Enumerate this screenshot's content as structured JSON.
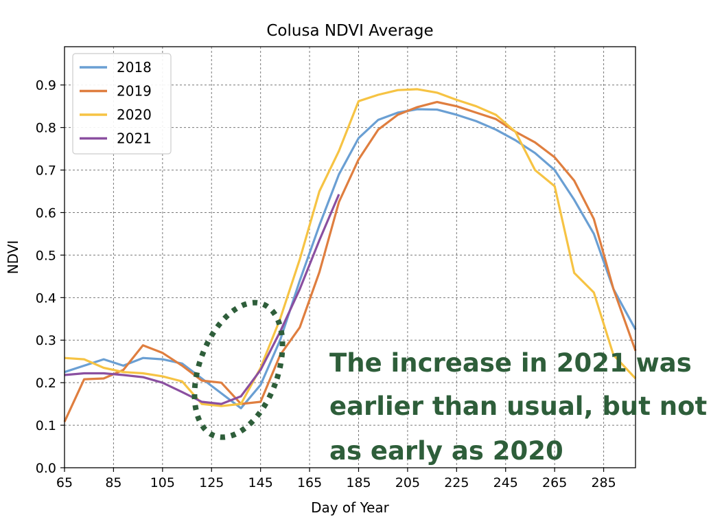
{
  "chart_data": {
    "type": "line",
    "title": "Colusa NDVI Average",
    "xlabel": "Day of Year",
    "ylabel": "NDVI",
    "xlim": [
      65,
      298
    ],
    "ylim": [
      0.0,
      0.99
    ],
    "xticks": [
      65,
      85,
      105,
      125,
      145,
      165,
      185,
      205,
      225,
      245,
      265,
      285
    ],
    "yticks": [
      0.0,
      0.1,
      0.2,
      0.3,
      0.4,
      0.5,
      0.6,
      0.7,
      0.8,
      0.9
    ],
    "grid": true,
    "grid_style": "dashed",
    "legend_position": "top-left",
    "series": [
      {
        "name": "2018",
        "color": "#6a9fd3",
        "x": [
          65,
          73,
          81,
          89,
          97,
          105,
          113,
          121,
          129,
          137,
          145,
          153,
          161,
          169,
          177,
          185,
          193,
          201,
          209,
          217,
          225,
          233,
          241,
          249,
          257,
          265,
          273,
          281,
          289,
          298
        ],
        "y": [
          0.225,
          0.24,
          0.255,
          0.24,
          0.258,
          0.255,
          0.245,
          0.21,
          0.175,
          0.14,
          0.195,
          0.3,
          0.44,
          0.57,
          0.69,
          0.775,
          0.818,
          0.835,
          0.843,
          0.842,
          0.83,
          0.815,
          0.795,
          0.77,
          0.74,
          0.7,
          0.63,
          0.55,
          0.42,
          0.325
        ]
      },
      {
        "name": "2019",
        "color": "#df7e3f",
        "x": [
          65,
          73,
          81,
          89,
          97,
          105,
          113,
          121,
          129,
          137,
          145,
          153,
          161,
          169,
          177,
          185,
          193,
          201,
          209,
          217,
          225,
          233,
          241,
          249,
          257,
          265,
          273,
          281,
          289,
          298
        ],
        "y": [
          0.108,
          0.208,
          0.21,
          0.23,
          0.288,
          0.27,
          0.24,
          0.205,
          0.2,
          0.15,
          0.155,
          0.265,
          0.33,
          0.46,
          0.625,
          0.725,
          0.795,
          0.83,
          0.848,
          0.86,
          0.85,
          0.835,
          0.82,
          0.79,
          0.765,
          0.73,
          0.675,
          0.585,
          0.42,
          0.275
        ]
      },
      {
        "name": "2020",
        "color": "#f6c343",
        "x": [
          65,
          73,
          81,
          89,
          97,
          105,
          113,
          121,
          129,
          137,
          145,
          153,
          161,
          169,
          177,
          185,
          193,
          201,
          209,
          217,
          225,
          233,
          241,
          249,
          257,
          265,
          273,
          281,
          289,
          298
        ],
        "y": [
          0.258,
          0.255,
          0.235,
          0.225,
          0.222,
          0.215,
          0.203,
          0.15,
          0.145,
          0.15,
          0.235,
          0.35,
          0.49,
          0.65,
          0.745,
          0.862,
          0.877,
          0.888,
          0.89,
          0.882,
          0.865,
          0.85,
          0.83,
          0.79,
          0.7,
          0.662,
          0.458,
          0.412,
          0.265,
          0.21
        ]
      },
      {
        "name": "2021",
        "color": "#8a4fa0",
        "x": [
          65,
          73,
          81,
          89,
          97,
          105,
          113,
          121,
          129,
          137,
          145,
          153,
          161,
          169,
          177
        ],
        "y": [
          0.218,
          0.222,
          0.222,
          0.218,
          0.213,
          0.2,
          0.178,
          0.155,
          0.15,
          0.168,
          0.23,
          0.32,
          0.42,
          0.535,
          0.643
        ]
      }
    ],
    "annotation_ellipse": {
      "center": [
        136,
        0.23
      ],
      "rx_days": 16,
      "ry_ndvi": 0.165,
      "color": "#2e5e3a"
    }
  },
  "annotation": {
    "lines": [
      "The increase in 2021 was",
      "earlier than usual, but not",
      "as early as 2020"
    ],
    "color": "#2e5e3a"
  }
}
